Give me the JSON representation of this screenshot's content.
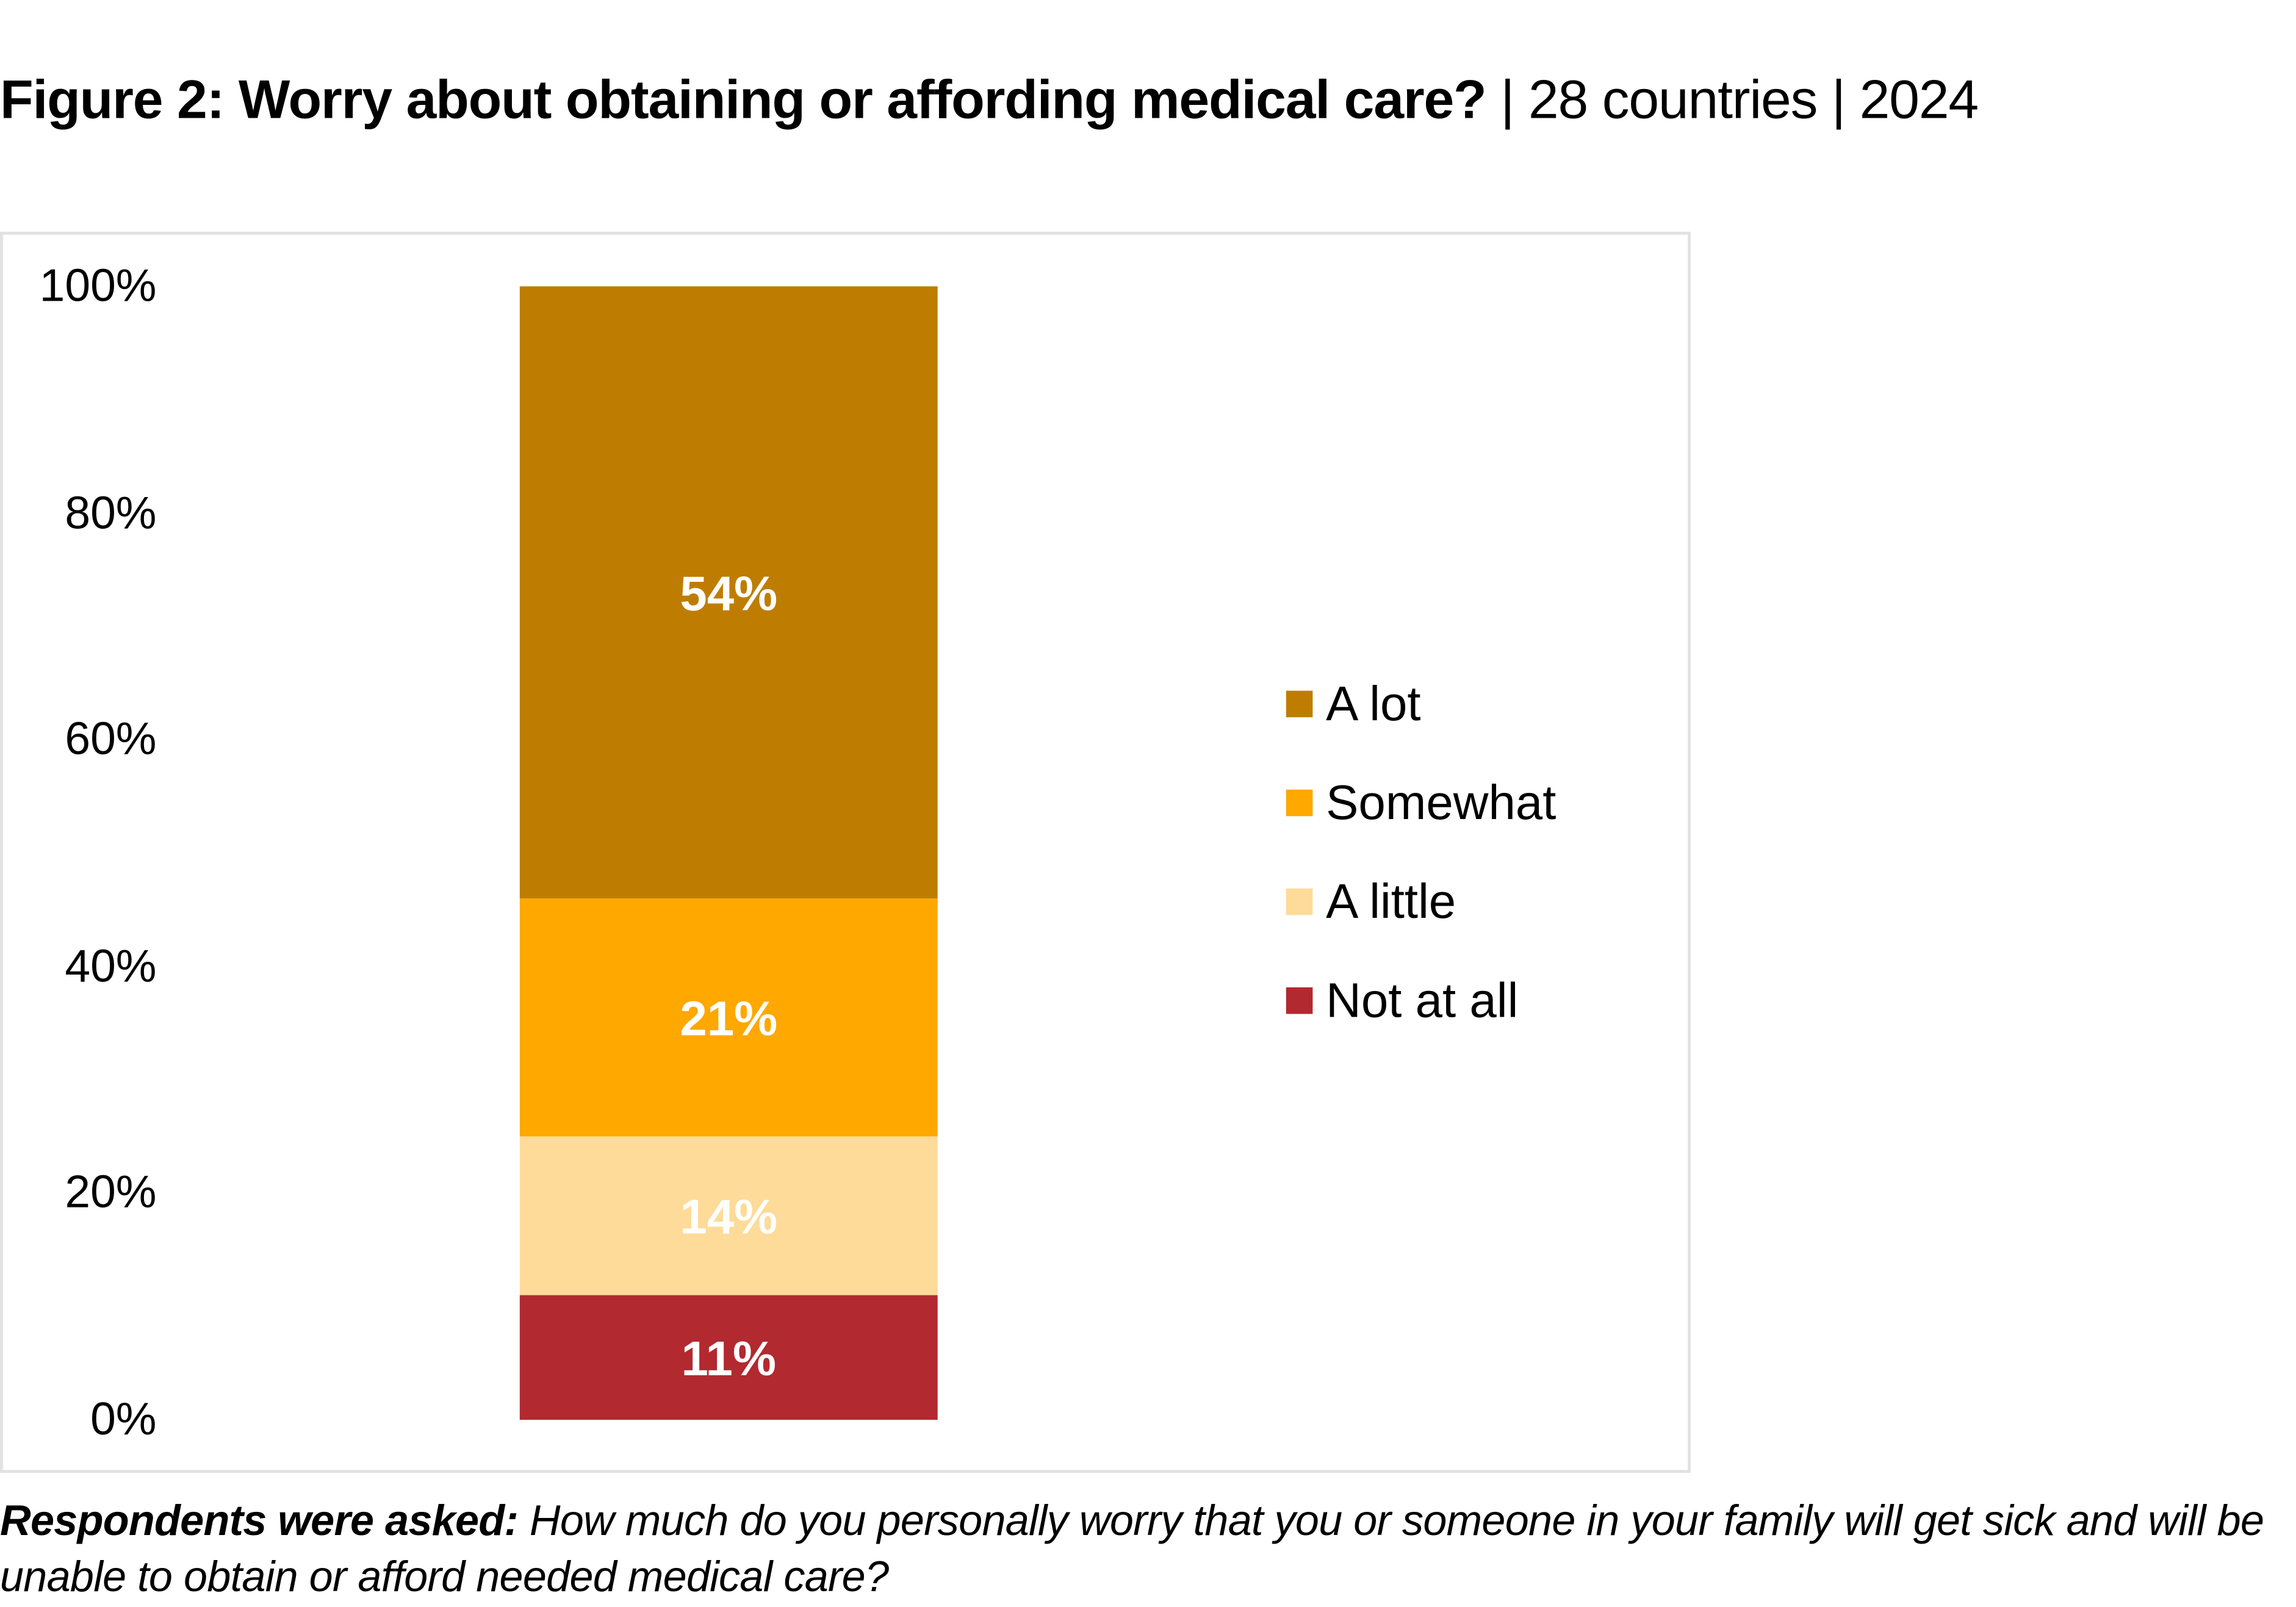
{
  "title": {
    "main": "Figure 2: Worry about obtaining or affording medical care?",
    "subtitle": " | 28 countries | 2024"
  },
  "chart_data": {
    "type": "bar",
    "stacked": true,
    "categories": [
      ""
    ],
    "series": [
      {
        "name": "Not at all",
        "values": [
          11
        ],
        "label": "11%",
        "color": "#B22930"
      },
      {
        "name": "A little",
        "values": [
          14
        ],
        "label": "14%",
        "color": "#FEDB98"
      },
      {
        "name": "Somewhat",
        "values": [
          21
        ],
        "label": "21%",
        "color": "#FEA800"
      },
      {
        "name": "A lot",
        "values": [
          54
        ],
        "label": "54%",
        "color": "#BE7D00"
      }
    ],
    "yticks": [
      "0%",
      "20%",
      "40%",
      "60%",
      "80%",
      "100%"
    ],
    "ylim": [
      0,
      100
    ],
    "grid": false,
    "legend_position": "right",
    "legend_order": [
      "A lot",
      "Somewhat",
      "A little",
      "Not at all"
    ]
  },
  "footer": {
    "lead": "Respondents were asked:",
    "question": " How much do you personally worry that you or someone in your family will get sick and will be unable to obtain or afford needed medical care?"
  }
}
